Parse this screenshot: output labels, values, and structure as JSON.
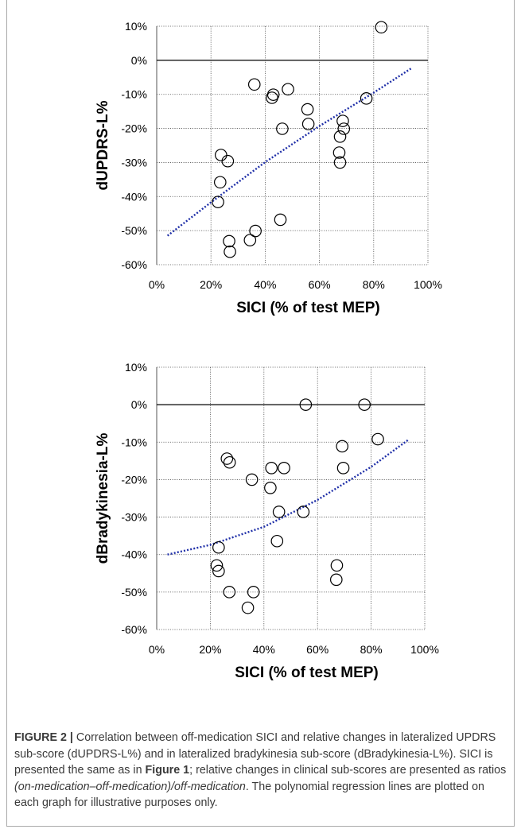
{
  "chart_data": [
    {
      "type": "scatter",
      "title": "",
      "xlabel": "SICI (% of test MEP)",
      "ylabel": "dUPDRS-L%",
      "xlim": [
        0,
        100
      ],
      "ylim": [
        -60,
        10
      ],
      "x_ticks": [
        "0%",
        "20%",
        "40%",
        "60%",
        "80%",
        "100%"
      ],
      "y_ticks": [
        "10%",
        "0%",
        "-10%",
        "-20%",
        "-30%",
        "-40%",
        "-50%",
        "-60%"
      ],
      "grid": true,
      "series": [
        {
          "marker": "open-circle",
          "points": [
            [
              82.8,
              9.7
            ],
            [
              36,
              -7.1
            ],
            [
              43,
              -10.1
            ],
            [
              42.5,
              -11.0
            ],
            [
              48.4,
              -8.5
            ],
            [
              77.3,
              -11.2
            ],
            [
              55.6,
              -14.4
            ],
            [
              55.9,
              -18.7
            ],
            [
              46.3,
              -20.1
            ],
            [
              68.6,
              -17.8
            ],
            [
              69.0,
              -20.1
            ],
            [
              67.6,
              -22.4
            ],
            [
              67.3,
              -27.1
            ],
            [
              67.6,
              -30.0
            ],
            [
              23.7,
              -27.8
            ],
            [
              26.2,
              -29.6
            ],
            [
              23.4,
              -35.8
            ],
            [
              22.6,
              -41.6
            ],
            [
              45.6,
              -46.8
            ],
            [
              36.4,
              -50.1
            ],
            [
              26.7,
              -53.1
            ],
            [
              34.4,
              -52.8
            ],
            [
              27.0,
              -56.2
            ]
          ]
        }
      ],
      "trendline": {
        "kind": "polynomial",
        "color": "#1f2fa8",
        "style": "dotted",
        "points": [
          [
            4,
            -51.5
          ],
          [
            20,
            -41.7
          ],
          [
            40,
            -29.9
          ],
          [
            60,
            -19.3
          ],
          [
            80,
            -9.5
          ],
          [
            94,
            -2.3
          ]
        ]
      },
      "zero_line": true
    },
    {
      "type": "scatter",
      "title": "",
      "xlabel": "SICI (% of test MEP)",
      "ylabel": "dBradykinesia-L%",
      "xlim": [
        0,
        100
      ],
      "ylim": [
        -60,
        10
      ],
      "x_ticks": [
        "0%",
        "20%",
        "40%",
        "60%",
        "80%",
        "100%"
      ],
      "y_ticks": [
        "10%",
        "0%",
        "-10%",
        "-20%",
        "-30%",
        "-40%",
        "-50%",
        "-60%"
      ],
      "grid": true,
      "series": [
        {
          "marker": "open-circle",
          "points": [
            [
              55.6,
              0.0
            ],
            [
              77.5,
              0.0
            ],
            [
              82.5,
              -9.2
            ],
            [
              69.2,
              -11.1
            ],
            [
              69.6,
              -16.9
            ],
            [
              26.2,
              -14.4
            ],
            [
              27.2,
              -15.4
            ],
            [
              35.5,
              -20.0
            ],
            [
              42.8,
              -16.9
            ],
            [
              47.5,
              -16.9
            ],
            [
              42.4,
              -22.2
            ],
            [
              45.6,
              -28.6
            ],
            [
              54.7,
              -28.6
            ],
            [
              44.9,
              -36.4
            ],
            [
              23.1,
              -38.1
            ],
            [
              22.4,
              -42.9
            ],
            [
              23.1,
              -44.4
            ],
            [
              67.2,
              -42.9
            ],
            [
              67.0,
              -46.7
            ],
            [
              27.1,
              -50.0
            ],
            [
              36.1,
              -50.0
            ],
            [
              34.0,
              -54.2
            ]
          ]
        }
      ],
      "trendline": {
        "kind": "polynomial",
        "color": "#1f2fa8",
        "style": "dotted",
        "points": [
          [
            4,
            -40.0
          ],
          [
            20,
            -37.4
          ],
          [
            40,
            -32.6
          ],
          [
            60,
            -25.4
          ],
          [
            80,
            -16.6
          ],
          [
            94,
            -9.3
          ]
        ]
      },
      "zero_line": true
    }
  ],
  "caption": {
    "label": "FIGURE 2 |",
    "segments": [
      {
        "text": " Correlation between off-medication SICI and relative changes in lateralized UPDRS sub-score (dUPDRS-L%) and in lateralized bradykinesia sub-score (dBradykinesia-L%). SICI is presented the same as in ",
        "style": "normal"
      },
      {
        "text": "Figure 1",
        "style": "bold"
      },
      {
        "text": "; relative changes in clinical sub-scores are presented as ratios ",
        "style": "normal"
      },
      {
        "text": "(on-medication–off-medication)/off-medication",
        "style": "italic"
      },
      {
        "text": ". The polynomial regression lines are plotted on each graph for illustrative purposes only.",
        "style": "normal"
      }
    ]
  }
}
